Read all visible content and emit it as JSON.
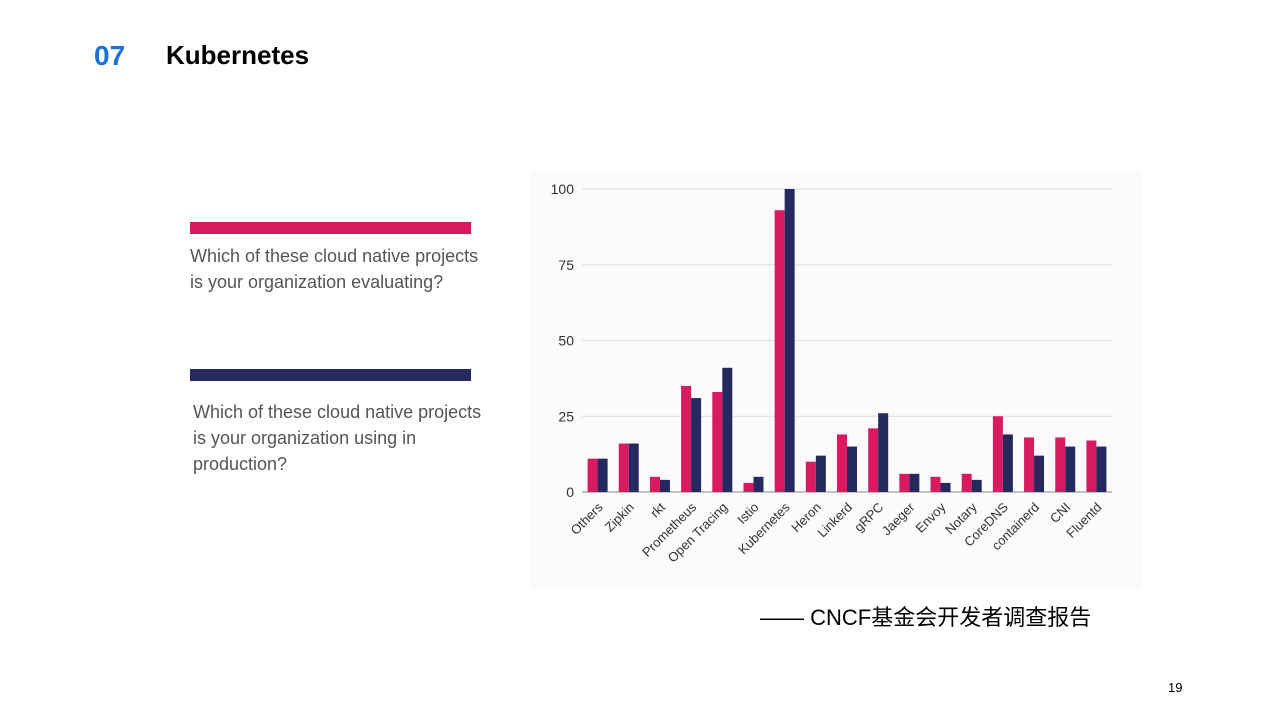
{
  "slide": {
    "section_number": "07",
    "title": "Kubernetes",
    "source": "—— CNCF基金会开发者调查报告",
    "page_number": "19"
  },
  "legend": [
    {
      "color": "#d81b60",
      "text": "Which of these cloud native projects is your organization evaluating?"
    },
    {
      "color": "#252a5e",
      "text": "Which of these cloud native projects is your organization using in production?"
    }
  ],
  "chart_data": {
    "type": "bar",
    "categories": [
      "Others",
      "Zipkin",
      "rkt",
      "Prometheus",
      "Open Tracing",
      "Istio",
      "Kubernetes",
      "Heron",
      "Linkerd",
      "gRPC",
      "Jaeger",
      "Envoy",
      "Notary",
      "CoreDNS",
      "containerd",
      "CNI",
      "Fluentd"
    ],
    "series": [
      {
        "name": "Which of these cloud native projects is your organization evaluating?",
        "color": "#d81b60",
        "values": [
          11,
          16,
          5,
          35,
          33,
          3,
          93,
          10,
          19,
          21,
          6,
          5,
          6,
          25,
          18,
          18,
          17
        ]
      },
      {
        "name": "Which of these cloud native projects is your organization using in production?",
        "color": "#252a5e",
        "values": [
          11,
          16,
          4,
          31,
          41,
          5,
          100,
          12,
          15,
          26,
          6,
          3,
          4,
          19,
          12,
          15,
          15
        ]
      }
    ],
    "yticks": [
      0,
      25,
      50,
      75,
      100
    ],
    "ylim": [
      0,
      100
    ],
    "grid": true,
    "legend_position": "left"
  }
}
